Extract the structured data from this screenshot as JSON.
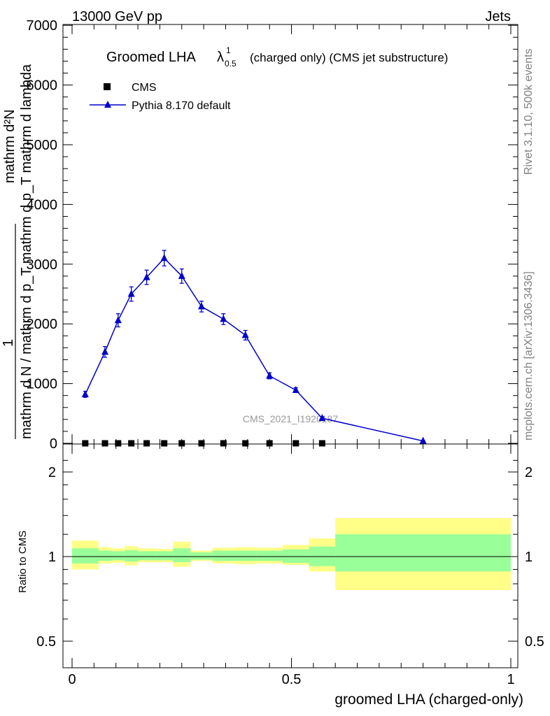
{
  "header": {
    "left": "13000 GeV pp",
    "right": "Jets"
  },
  "title": {
    "main": "Groomed LHA",
    "lambda": "λ",
    "sup": "1",
    "sub": "0.5",
    "rest": "(charged only) (CMS jet substructure)"
  },
  "side_text": {
    "rivet": "Rivet 3.1.10,  500k events",
    "mcplots": "mcplots.cern.ch [arXiv:1306.3436]"
  },
  "watermark": "CMS_2021_I1920187",
  "legend": {
    "cms": "CMS",
    "pythia": "Pythia 8.170 default"
  },
  "ylabel_main": {
    "numerator": "mathrm d²N",
    "denominator": "mathrm d N / mathrm d p_T mathrm d p_T mathrm d lambda",
    "prefix": "1",
    "frac_top": "mathrm d",
    "frac_bottom": "mathrm d N / mathrm d p",
    "sub_T": "T",
    "tail": "mathrm d lambda"
  },
  "ylabel_ratio": "Ratio to CMS",
  "xlabel": "groomed LHA (charged-only)",
  "colors": {
    "pythia": "#0000cc",
    "band_inner": "#99ff99",
    "band_outer": "#ffff88",
    "data": "#000000"
  },
  "chart_data": [
    {
      "type": "line",
      "panel": "main",
      "xlim": [
        -0.02,
        1.0
      ],
      "ylim": [
        0,
        7000
      ],
      "yticks": [
        "1000",
        "2000",
        "3000",
        "4000",
        "5000",
        "6000",
        "7000",
        "0"
      ],
      "series": [
        {
          "name": "CMS",
          "x": [
            0.03,
            0.075,
            0.105,
            0.135,
            0.17,
            0.21,
            0.25,
            0.295,
            0.345,
            0.395,
            0.45,
            0.51,
            0.57
          ],
          "y": [
            0,
            0,
            0,
            0,
            0,
            0,
            0,
            0,
            0,
            0,
            0,
            0,
            0
          ]
        },
        {
          "name": "Pythia 8.170 default",
          "x": [
            0.03,
            0.075,
            0.105,
            0.135,
            0.17,
            0.21,
            0.25,
            0.295,
            0.345,
            0.395,
            0.45,
            0.51,
            0.57,
            0.8
          ],
          "y": [
            820,
            1530,
            2060,
            2500,
            2780,
            3100,
            2800,
            2290,
            2080,
            1810,
            1130,
            890,
            420,
            40
          ],
          "err": [
            50,
            90,
            110,
            120,
            120,
            130,
            120,
            90,
            90,
            80,
            50,
            40,
            25,
            5
          ]
        }
      ]
    },
    {
      "type": "area",
      "panel": "ratio",
      "ylim": [
        0.4,
        2.3
      ],
      "yticks": [
        "0.5",
        "1",
        "2"
      ],
      "xticks": [
        "0",
        "0.5",
        "1"
      ],
      "bins": [
        {
          "lo": 0.0,
          "hi": 0.06,
          "inner": [
            0.945,
            1.07
          ],
          "outer": [
            0.9,
            1.14
          ]
        },
        {
          "lo": 0.06,
          "hi": 0.09,
          "inner": [
            0.965,
            1.05
          ],
          "outer": [
            0.945,
            1.08
          ]
        },
        {
          "lo": 0.09,
          "hi": 0.12,
          "inner": [
            0.97,
            1.045
          ],
          "outer": [
            0.95,
            1.07
          ]
        },
        {
          "lo": 0.12,
          "hi": 0.15,
          "inner": [
            0.96,
            1.055
          ],
          "outer": [
            0.93,
            1.09
          ]
        },
        {
          "lo": 0.15,
          "hi": 0.19,
          "inner": [
            0.97,
            1.045
          ],
          "outer": [
            0.955,
            1.07
          ]
        },
        {
          "lo": 0.19,
          "hi": 0.23,
          "inner": [
            0.97,
            1.045
          ],
          "outer": [
            0.955,
            1.065
          ]
        },
        {
          "lo": 0.23,
          "hi": 0.27,
          "inner": [
            0.955,
            1.07
          ],
          "outer": [
            0.92,
            1.13
          ]
        },
        {
          "lo": 0.27,
          "hi": 0.32,
          "inner": [
            0.975,
            1.035
          ],
          "outer": [
            0.965,
            1.05
          ]
        },
        {
          "lo": 0.32,
          "hi": 0.37,
          "inner": [
            0.965,
            1.05
          ],
          "outer": [
            0.945,
            1.075
          ]
        },
        {
          "lo": 0.37,
          "hi": 0.42,
          "inner": [
            0.965,
            1.05
          ],
          "outer": [
            0.94,
            1.08
          ]
        },
        {
          "lo": 0.42,
          "hi": 0.48,
          "inner": [
            0.965,
            1.05
          ],
          "outer": [
            0.945,
            1.075
          ]
        },
        {
          "lo": 0.48,
          "hi": 0.54,
          "inner": [
            0.95,
            1.06
          ],
          "outer": [
            0.935,
            1.1
          ]
        },
        {
          "lo": 0.54,
          "hi": 0.6,
          "inner": [
            0.925,
            1.085
          ],
          "outer": [
            0.885,
            1.16
          ]
        },
        {
          "lo": 0.6,
          "hi": 1.0,
          "inner": [
            0.885,
            1.2
          ],
          "outer": [
            0.76,
            1.37
          ]
        }
      ]
    }
  ]
}
